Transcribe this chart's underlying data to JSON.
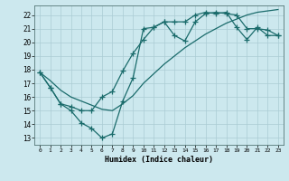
{
  "bg_color": "#cce8ee",
  "grid_color": "#aaccd4",
  "line_color": "#1a6b6b",
  "xlabel": "Humidex (Indice chaleur)",
  "xlim": [
    -0.5,
    23.5
  ],
  "ylim": [
    12.5,
    22.7
  ],
  "xticks": [
    0,
    1,
    2,
    3,
    4,
    5,
    6,
    7,
    8,
    9,
    10,
    11,
    12,
    13,
    14,
    15,
    16,
    17,
    18,
    19,
    20,
    21,
    22,
    23
  ],
  "yticks": [
    13,
    14,
    15,
    16,
    17,
    18,
    19,
    20,
    21,
    22
  ],
  "line1_x": [
    0,
    1,
    2,
    3,
    4,
    5,
    6,
    7,
    8,
    9,
    10,
    11,
    12,
    13,
    14,
    15,
    16,
    17,
    18,
    19,
    20,
    21,
    22,
    23
  ],
  "line1_y": [
    17.8,
    16.7,
    15.5,
    15.0,
    14.1,
    13.7,
    13.0,
    13.3,
    15.7,
    17.4,
    21.0,
    21.1,
    21.5,
    20.5,
    20.1,
    21.5,
    22.1,
    22.2,
    22.1,
    22.0,
    21.0,
    21.0,
    20.9,
    20.5
  ],
  "line2_x": [
    0,
    1,
    2,
    3,
    4,
    5,
    6,
    7,
    8,
    9,
    10,
    11,
    12,
    13,
    14,
    15,
    16,
    17,
    18,
    19,
    20,
    21,
    22,
    23
  ],
  "line2_y": [
    17.8,
    16.7,
    15.5,
    15.3,
    15.0,
    15.0,
    16.0,
    16.4,
    17.9,
    19.2,
    20.2,
    21.1,
    21.5,
    21.5,
    21.5,
    22.0,
    22.2,
    22.1,
    22.2,
    21.1,
    20.2,
    21.1,
    20.5,
    20.5
  ],
  "line3_x": [
    0,
    1,
    2,
    3,
    4,
    5,
    6,
    7,
    8,
    9,
    10,
    11,
    12,
    13,
    14,
    15,
    16,
    17,
    18,
    19,
    20,
    21,
    22,
    23
  ],
  "line3_y": [
    17.8,
    17.2,
    16.5,
    16.0,
    15.7,
    15.4,
    15.1,
    15.0,
    15.5,
    16.1,
    17.0,
    17.7,
    18.4,
    19.0,
    19.6,
    20.1,
    20.6,
    21.0,
    21.4,
    21.7,
    22.0,
    22.2,
    22.3,
    22.4
  ]
}
